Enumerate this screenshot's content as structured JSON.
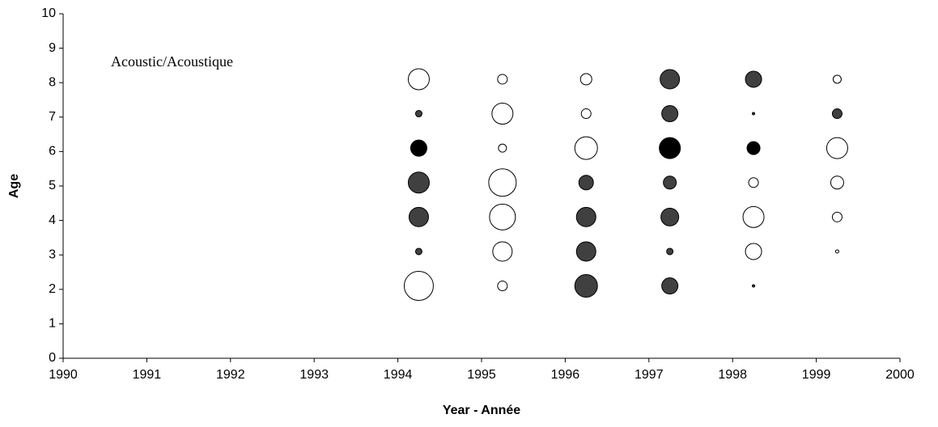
{
  "chart_data": {
    "type": "bubble",
    "annotation": "Acoustic/Acoustique",
    "xlabel": "Year - Année",
    "ylabel": "Age",
    "xlim": [
      1990,
      2000
    ],
    "ylim": [
      0,
      10
    ],
    "xticks": [
      1990,
      1991,
      1992,
      1993,
      1994,
      1995,
      1996,
      1997,
      1998,
      1999,
      2000
    ],
    "yticks": [
      0,
      1,
      2,
      3,
      4,
      5,
      6,
      7,
      8,
      9,
      10
    ],
    "series": [
      {
        "color": "#ffffff",
        "x": [
          1994.25,
          1994.25,
          1995.25,
          1995.25,
          1995.25,
          1995.25,
          1995.25,
          1995.25,
          1995.25,
          1996.25,
          1996.25,
          1996.25,
          1998.25,
          1998.25,
          1998.25,
          1999.25,
          1999.25,
          1999.25,
          1999.25,
          1999.25
        ],
        "values": [
          8.1,
          2.1,
          8.1,
          7.1,
          6.1,
          5.1,
          4.1,
          3.1,
          2.1,
          8.1,
          7.1,
          6.1,
          5.1,
          4.1,
          3.1,
          8.1,
          6.1,
          5.1,
          4.1,
          3.1
        ],
        "sizes": [
          13,
          18,
          6,
          13,
          5,
          17,
          16,
          12,
          6,
          7,
          6,
          14,
          6,
          13,
          10,
          5,
          13,
          8,
          6,
          2
        ]
      },
      {
        "color": "#404040",
        "x": [
          1994.25,
          1994.25,
          1994.25,
          1994.25,
          1996.25,
          1996.25,
          1996.25,
          1996.25,
          1997.25,
          1997.25,
          1997.25,
          1997.25,
          1997.25,
          1997.25,
          1998.25,
          1998.25,
          1998.25,
          1999.25
        ],
        "values": [
          7.1,
          5.1,
          4.1,
          3.1,
          5.1,
          4.1,
          3.1,
          2.1,
          8.1,
          7.1,
          5.1,
          4.1,
          3.1,
          2.1,
          8.1,
          7.1,
          2.1,
          7.1
        ],
        "sizes": [
          4,
          13,
          12,
          4,
          9,
          12,
          12,
          14,
          12,
          10,
          8,
          11,
          4,
          10,
          10,
          1.5,
          1.5,
          6
        ]
      },
      {
        "color": "#000000",
        "x": [
          1994.25,
          1997.25,
          1998.25
        ],
        "values": [
          6.1,
          6.1,
          6.1
        ],
        "sizes": [
          10,
          13,
          8
        ]
      }
    ]
  }
}
